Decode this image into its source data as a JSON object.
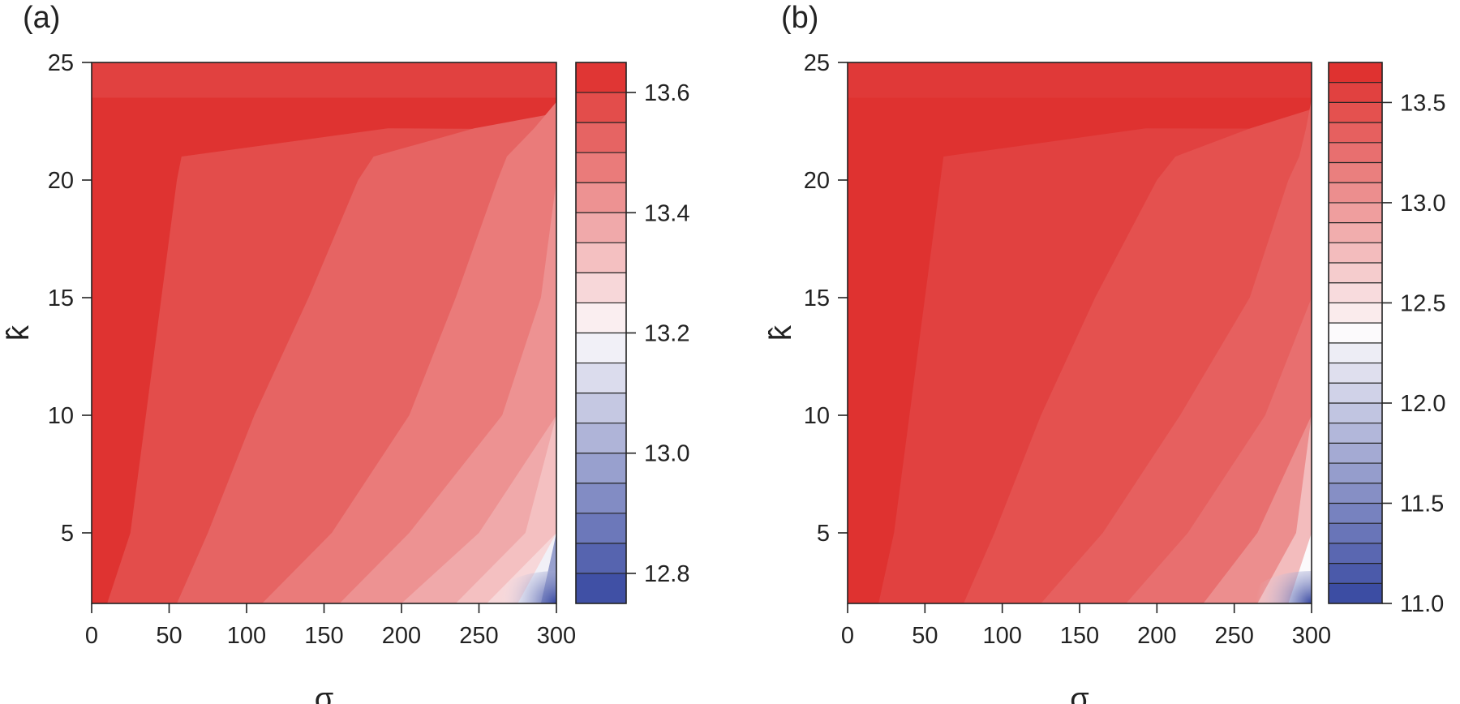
{
  "panels": [
    {
      "label": "(a)"
    },
    {
      "label": "(b)"
    }
  ],
  "chart_data": [
    {
      "type": "heatmap",
      "panel": "(a)",
      "xlabel": "σ",
      "ylabel": "k̂",
      "xlim": [
        0,
        300
      ],
      "ylim": [
        2,
        25
      ],
      "x_ticks": [
        0,
        50,
        100,
        150,
        200,
        250,
        300
      ],
      "y_ticks": [
        5,
        10,
        15,
        20,
        25
      ],
      "colorbar": {
        "range": [
          12.75,
          13.65
        ],
        "levels": [
          12.75,
          12.8,
          12.85,
          12.9,
          12.95,
          13.0,
          13.05,
          13.1,
          13.15,
          13.2,
          13.25,
          13.3,
          13.35,
          13.4,
          13.45,
          13.5,
          13.55,
          13.6,
          13.65
        ],
        "ticks": [
          12.8,
          13.0,
          13.2,
          13.4,
          13.6
        ]
      },
      "contour_boundaries_sigma_at_k": {
        "k_values": [
          2,
          5,
          10,
          15,
          20,
          21
        ],
        "level_13_6": [
          10,
          25,
          35,
          45,
          55,
          58
        ],
        "level_13_55": [
          55,
          75,
          105,
          140,
          172,
          182
        ],
        "level_13_5": [
          110,
          155,
          205,
          235,
          262,
          268
        ],
        "level_13_45": [
          160,
          205,
          265,
          290,
          300,
          300
        ],
        "level_13_4": [
          200,
          250,
          300,
          300,
          300,
          300
        ],
        "level_13_35": [
          235,
          280,
          300,
          300,
          300,
          300
        ],
        "level_13_3": [
          255,
          300,
          300,
          300,
          300,
          300
        ],
        "level_13_2": [
          275,
          300,
          300,
          300,
          300,
          300
        ],
        "level_13_0": [
          290,
          300,
          300,
          300,
          300,
          300
        ]
      },
      "min_value_at": {
        "sigma": 300,
        "k": 2,
        "value": 12.75
      },
      "high_k_band": {
        "k_range": [
          23.5,
          25
        ],
        "value": 13.6
      }
    },
    {
      "type": "heatmap",
      "panel": "(b)",
      "xlabel": "σ",
      "ylabel": "k̂",
      "xlim": [
        0,
        300
      ],
      "ylim": [
        2,
        25
      ],
      "x_ticks": [
        0,
        50,
        100,
        150,
        200,
        250,
        300
      ],
      "y_ticks": [
        5,
        10,
        15,
        20,
        25
      ],
      "colorbar": {
        "range": [
          11.0,
          13.7
        ],
        "levels": [
          11.0,
          11.1,
          11.2,
          11.3,
          11.4,
          11.5,
          11.6,
          11.7,
          11.8,
          11.9,
          12.0,
          12.1,
          12.2,
          12.3,
          12.4,
          12.5,
          12.6,
          12.7,
          12.8,
          12.9,
          13.0,
          13.1,
          13.2,
          13.3,
          13.4,
          13.5,
          13.6,
          13.7
        ],
        "ticks": [
          11.0,
          11.5,
          12.0,
          12.5,
          13.0,
          13.5
        ]
      },
      "contour_boundaries_sigma_at_k": {
        "k_values": [
          2,
          5,
          10,
          15,
          20,
          21
        ],
        "level_13_6": [
          20,
          30,
          40,
          50,
          60,
          62
        ],
        "level_13_5": [
          75,
          95,
          125,
          160,
          200,
          212
        ],
        "level_13_4": [
          125,
          165,
          215,
          260,
          285,
          292
        ],
        "level_13_3": [
          180,
          220,
          270,
          300,
          300,
          300
        ],
        "level_13_1": [
          230,
          265,
          300,
          300,
          300,
          300
        ],
        "level_12_8": [
          265,
          290,
          300,
          300,
          300,
          300
        ],
        "level_12_4": [
          285,
          300,
          300,
          300,
          300,
          300
        ]
      },
      "min_value_at": {
        "sigma": 300,
        "k": 2,
        "value": 11.0
      },
      "high_k_band": {
        "k_range": [
          23.5,
          25
        ],
        "value": 13.6
      }
    }
  ]
}
